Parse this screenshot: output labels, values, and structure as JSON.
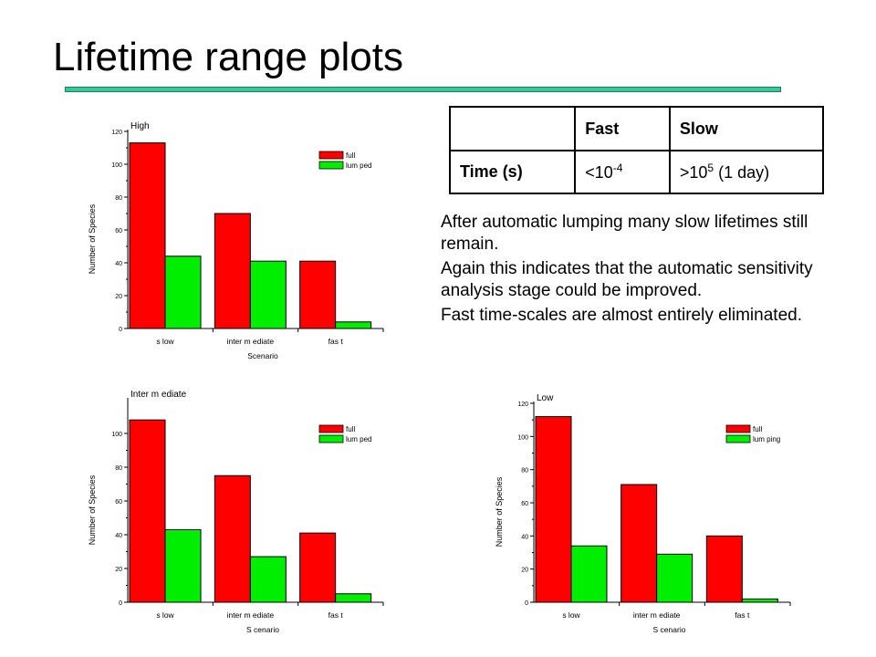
{
  "slide": {
    "title": "Lifetime range plots"
  },
  "table": {
    "header": [
      "",
      "Fast",
      "Slow"
    ],
    "row_label": "Time (s)",
    "fast": {
      "prefix": "<10",
      "exponent": "-4",
      "suffix": ""
    },
    "slow": {
      "prefix": ">10",
      "exponent": "5",
      "suffix": " (1 day)"
    }
  },
  "notes": [
    "After automatic lumping many slow lifetimes still remain.",
    "Again this indicates that the automatic sensitivity analysis stage could be improved.",
    "Fast time-scales are almost entirely eliminated."
  ],
  "colors": {
    "full": "#ff0000",
    "lumped": "#00ee00",
    "rule": "#33cc99"
  },
  "chart_data": [
    {
      "type": "bar",
      "title": "High",
      "xlabel": "Scenario",
      "ylabel": "Number of Species",
      "categories": [
        "slow",
        "intermediate",
        "fast"
      ],
      "category_labels": [
        "s low",
        "inter m ediate",
        "fas t"
      ],
      "ylim": [
        0,
        120
      ],
      "yticks": [
        0,
        20,
        40,
        60,
        80,
        100,
        120
      ],
      "grid": false,
      "legend_position": "top-right",
      "series": [
        {
          "name": "full",
          "color": "#ff0000",
          "values": [
            113,
            70,
            41
          ]
        },
        {
          "name": "lum ped",
          "color": "#00ee00",
          "values": [
            44,
            41,
            4
          ]
        }
      ]
    },
    {
      "type": "bar",
      "title": "Inter m ediate",
      "xlabel": "S cenario",
      "ylabel": "Number of Species",
      "categories": [
        "slow",
        "intermediate",
        "fast"
      ],
      "category_labels": [
        "s low",
        "inter m ediate",
        "fas t"
      ],
      "ylim": [
        0,
        120
      ],
      "yticks": [
        0,
        20,
        40,
        60,
        80,
        100
      ],
      "grid": false,
      "legend_position": "top-right",
      "series": [
        {
          "name": "full",
          "color": "#ff0000",
          "values": [
            108,
            75,
            41
          ]
        },
        {
          "name": "lum ped",
          "color": "#00ee00",
          "values": [
            43,
            27,
            5
          ]
        }
      ]
    },
    {
      "type": "bar",
      "title": "Low",
      "xlabel": "S cenario",
      "ylabel": "Number of Species",
      "categories": [
        "slow",
        "intermediate",
        "fast"
      ],
      "category_labels": [
        "s low",
        "inter m ediate",
        "fas t"
      ],
      "ylim": [
        0,
        120
      ],
      "yticks": [
        0,
        20,
        40,
        60,
        80,
        100,
        120
      ],
      "grid": false,
      "legend_position": "top-right",
      "series": [
        {
          "name": "full",
          "color": "#ff0000",
          "values": [
            112,
            71,
            40
          ]
        },
        {
          "name": "lum ping",
          "color": "#00ee00",
          "values": [
            34,
            29,
            2
          ]
        }
      ]
    }
  ]
}
